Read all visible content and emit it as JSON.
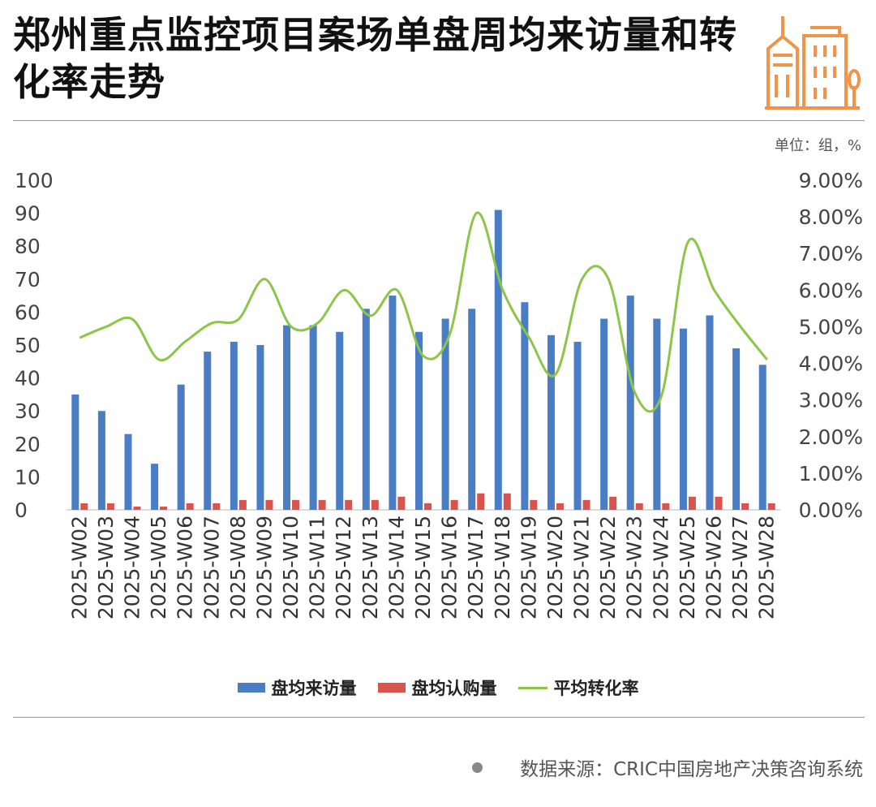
{
  "title": "郑州重点监控项目案场单盘周均来访量和转化率走势",
  "unit_label": "单位：组，%",
  "source_label": "数据来源：CRIC中国房地产决策咨询系统",
  "colors": {
    "visits": "#4a7dc4",
    "subs": "#d9534f",
    "rate": "#8dc549",
    "logo": "#f0944a"
  },
  "legend": {
    "visits": "盘均来访量",
    "subs": "盘均认购量",
    "rate": "平均转化率"
  },
  "chart_data": {
    "type": "bar",
    "categories": [
      "2025-W02",
      "2025-W03",
      "2025-W04",
      "2025-W05",
      "2025-W06",
      "2025-W07",
      "2025-W08",
      "2025-W09",
      "2025-W10",
      "2025-W11",
      "2025-W12",
      "2025-W13",
      "2025-W14",
      "2025-W15",
      "2025-W16",
      "2025-W17",
      "2025-W18",
      "2025-W19",
      "2025-W20",
      "2025-W21",
      "2025-W22",
      "2025-W23",
      "2025-W24",
      "2025-W25",
      "2025-W26",
      "2025-W27",
      "2025-W28"
    ],
    "series": [
      {
        "name": "盘均来访量",
        "type": "bar",
        "axis": "left",
        "values": [
          35,
          30,
          23,
          14,
          38,
          48,
          51,
          50,
          56,
          56,
          54,
          61,
          65,
          54,
          58,
          61,
          91,
          63,
          53,
          51,
          58,
          65,
          58,
          55,
          59,
          49,
          44
        ]
      },
      {
        "name": "盘均认购量",
        "type": "bar",
        "axis": "left",
        "values": [
          2,
          2,
          1,
          1,
          2,
          2,
          3,
          3,
          3,
          3,
          3,
          3,
          4,
          2,
          3,
          5,
          5,
          3,
          2,
          3,
          4,
          2,
          2,
          4,
          4,
          2,
          2
        ]
      },
      {
        "name": "平均转化率",
        "type": "line",
        "axis": "right",
        "values": [
          4.7,
          5.0,
          5.2,
          4.1,
          4.6,
          5.1,
          5.2,
          6.3,
          5.0,
          5.1,
          6.0,
          5.3,
          6.0,
          4.2,
          4.8,
          8.1,
          6.0,
          4.7,
          3.7,
          6.3,
          6.3,
          3.2,
          3.1,
          7.3,
          6.0,
          5.0,
          4.1
        ]
      }
    ],
    "y_left": {
      "min": 0,
      "max": 100,
      "ticks": [
        "0",
        "10",
        "20",
        "30",
        "40",
        "50",
        "60",
        "70",
        "80",
        "90",
        "100"
      ]
    },
    "y_right": {
      "min": 0,
      "max": 9,
      "ticks": [
        "0.00%",
        "1.00%",
        "2.00%",
        "3.00%",
        "4.00%",
        "5.00%",
        "6.00%",
        "7.00%",
        "8.00%",
        "9.00%"
      ]
    },
    "grid": false,
    "legend_position": "bottom"
  }
}
